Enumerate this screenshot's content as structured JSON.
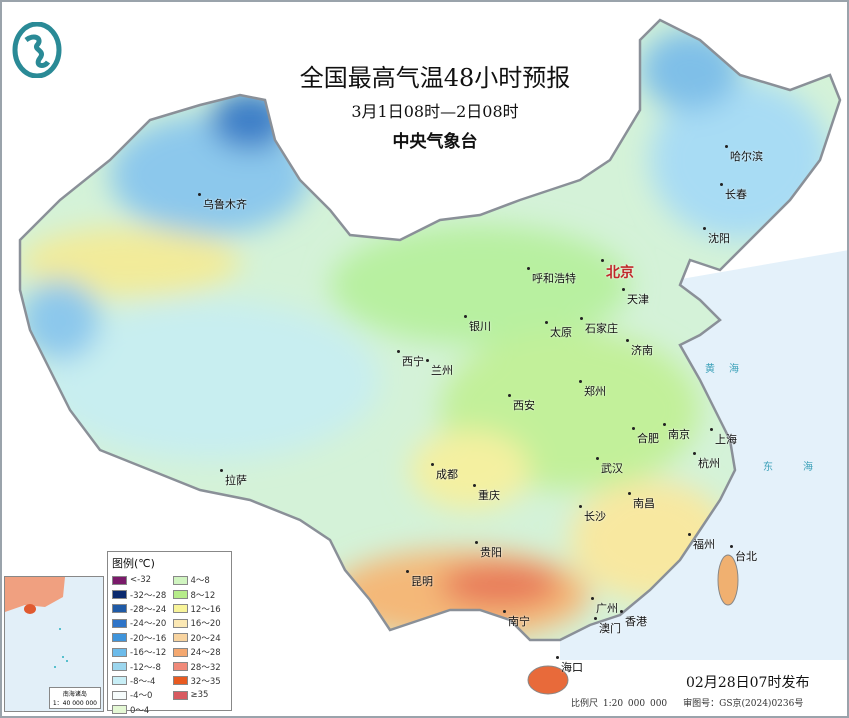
{
  "title": "全国最高气温48小时预报",
  "period": "3月1日08时—2日08时",
  "issuer": "中央气象台",
  "issued": "02月28日07时发布",
  "scale": "比例尺 1:20 000 000",
  "map_approval": "审图号：GS京(2024)0236号",
  "inset": {
    "title": "南海诸岛",
    "scale": "1：40 000 000"
  },
  "logo": "中央气象台 logo",
  "cities": [
    {
      "name": "北京",
      "capital": true
    },
    {
      "name": "哈尔滨"
    },
    {
      "name": "长春"
    },
    {
      "name": "沈阳"
    },
    {
      "name": "呼和浩特"
    },
    {
      "name": "天津"
    },
    {
      "name": "石家庄"
    },
    {
      "name": "太原"
    },
    {
      "name": "银川"
    },
    {
      "name": "乌鲁木齐"
    },
    {
      "name": "西宁"
    },
    {
      "name": "兰州"
    },
    {
      "name": "济南"
    },
    {
      "name": "郑州"
    },
    {
      "name": "西安"
    },
    {
      "name": "合肥"
    },
    {
      "name": "南京"
    },
    {
      "name": "上海"
    },
    {
      "name": "杭州"
    },
    {
      "name": "成都"
    },
    {
      "name": "重庆"
    },
    {
      "name": "武汉"
    },
    {
      "name": "拉萨"
    },
    {
      "name": "长沙"
    },
    {
      "name": "南昌"
    },
    {
      "name": "贵阳"
    },
    {
      "name": "福州"
    },
    {
      "name": "台北"
    },
    {
      "name": "昆明"
    },
    {
      "name": "南宁"
    },
    {
      "name": "广州"
    },
    {
      "name": "香港"
    },
    {
      "name": "澳门"
    },
    {
      "name": "海口"
    }
  ],
  "seas": [
    "黄海",
    "东海"
  ],
  "legend": {
    "title": "图例(℃)",
    "items": [
      {
        "label": "<-32",
        "color": "#7a1a6a"
      },
      {
        "label": "-32～-28",
        "color": "#0b2a6e"
      },
      {
        "label": "-28～-24",
        "color": "#1f5aa6"
      },
      {
        "label": "-24～-20",
        "color": "#2e74c8"
      },
      {
        "label": "-20～-16",
        "color": "#3f94db"
      },
      {
        "label": "-16～-12",
        "color": "#6cbbea"
      },
      {
        "label": "-12～-8",
        "color": "#9cd6ee"
      },
      {
        "label": "-8～-4",
        "color": "#c8eef6"
      },
      {
        "label": "-4～0",
        "color": "#f6fcfc"
      },
      {
        "label": "0～4",
        "color": "#e4f8d4"
      },
      {
        "label": "4～8",
        "color": "#d0f4c0"
      },
      {
        "label": "8～12",
        "color": "#b6ec8a"
      },
      {
        "label": "12～16",
        "color": "#f8f49a"
      },
      {
        "label": "16～20",
        "color": "#fbe8b4"
      },
      {
        "label": "20～24",
        "color": "#f8d4a0"
      },
      {
        "label": "24～28",
        "color": "#f4a870"
      },
      {
        "label": "28～32",
        "color": "#f08a7a"
      },
      {
        "label": "32～35",
        "color": "#e85a20"
      },
      {
        "label": "≥35",
        "color": "#d85a60"
      }
    ]
  }
}
